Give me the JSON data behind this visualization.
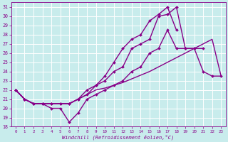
{
  "xlabel": "Windchill (Refroidissement éolien,°C)",
  "xlim": [
    -0.5,
    23.5
  ],
  "ylim": [
    18,
    31.5
  ],
  "xticks": [
    0,
    1,
    2,
    3,
    4,
    5,
    6,
    7,
    8,
    9,
    10,
    11,
    12,
    13,
    14,
    15,
    16,
    17,
    18,
    19,
    20,
    21,
    22,
    23
  ],
  "yticks": [
    18,
    19,
    20,
    21,
    22,
    23,
    24,
    25,
    26,
    27,
    28,
    29,
    30,
    31
  ],
  "bg_color": "#c8ecec",
  "line_color": "#880088",
  "grid_color": "#ffffff",
  "lines": [
    {
      "x": [
        0,
        1,
        2,
        3,
        4,
        5,
        6,
        7,
        8,
        9,
        10,
        11,
        12,
        13,
        14,
        15,
        16,
        17,
        18,
        19,
        20,
        21,
        22,
        23
      ],
      "y": [
        22,
        21,
        20.5,
        20.5,
        20,
        20,
        18.5,
        19.5,
        21,
        21.5,
        22,
        22.5,
        23,
        24,
        24.5,
        26,
        26.5,
        28.5,
        26.5,
        26.5,
        26.5,
        24,
        23.5,
        23.5
      ],
      "marker": "D",
      "markersize": 2,
      "linewidth": 1.0
    },
    {
      "x": [
        0,
        1,
        2,
        3,
        4,
        5,
        6,
        7,
        8,
        9,
        10,
        11,
        12,
        13,
        14,
        15,
        16,
        17,
        18
      ],
      "y": [
        22,
        21,
        20.5,
        20.5,
        20.5,
        20.5,
        20.5,
        21,
        21.5,
        22.5,
        23.5,
        25,
        26.5,
        27.5,
        28,
        29.5,
        30.2,
        31,
        28.5
      ],
      "marker": "D",
      "markersize": 2,
      "linewidth": 1.0
    },
    {
      "x": [
        0,
        1,
        2,
        3,
        4,
        5,
        6,
        7,
        8,
        9,
        10,
        11,
        12,
        13,
        14,
        15,
        16,
        17,
        18,
        19,
        20,
        21
      ],
      "y": [
        22,
        21,
        20.5,
        20.5,
        20.5,
        20.5,
        20.5,
        21,
        22,
        22.5,
        23,
        24,
        24.5,
        26.5,
        27,
        27.5,
        30,
        30.2,
        31,
        26.5,
        26.5,
        26.5
      ],
      "marker": "D",
      "markersize": 2,
      "linewidth": 1.0
    },
    {
      "x": [
        0,
        1,
        2,
        3,
        4,
        5,
        6,
        7,
        8,
        9,
        10,
        11,
        12,
        13,
        14,
        15,
        16,
        17,
        18,
        19,
        20,
        21,
        22,
        23
      ],
      "y": [
        22,
        21,
        20.5,
        20.5,
        20.5,
        20.5,
        20.5,
        21,
        21.5,
        22,
        22.2,
        22.5,
        22.8,
        23.2,
        23.6,
        24,
        24.5,
        25,
        25.5,
        26,
        26.5,
        27,
        27.5,
        23.5
      ],
      "marker": null,
      "markersize": 0,
      "linewidth": 1.0
    }
  ]
}
